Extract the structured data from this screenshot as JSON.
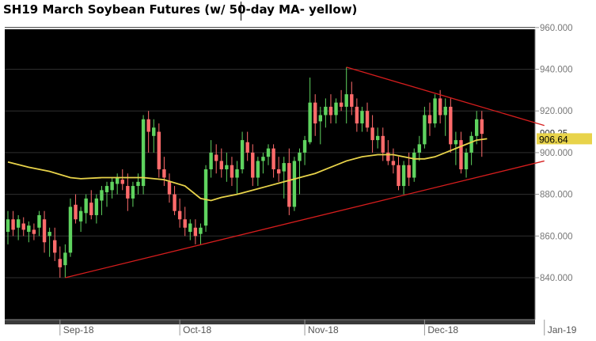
{
  "title": "SH19 March Soybean Futures (w/ 50-day MA- yellow)",
  "colors": {
    "background": "#000000",
    "up": "#5fd35f",
    "down": "#ff6b6b",
    "ma": "#e8d34a",
    "trend": "#d61d1d",
    "grid": "#2f2f2f",
    "axis": "#dddddd",
    "price_label_bg": "#e8d34a"
  },
  "chart_data": {
    "type": "candlestick",
    "ylim": [
      820,
      962
    ],
    "y_ticks": [
      "840.000",
      "860.000",
      "880.000",
      "900.000",
      "920.000",
      "940.000",
      "960.000"
    ],
    "x_labels": [
      "Sep-18",
      "Oct-18",
      "Nov-18",
      "Dec-18",
      "Jan-19"
    ],
    "x_label_days": [
      10,
      33,
      57,
      80,
      103
    ],
    "grid": "horizontal",
    "last_price": "909.25",
    "ma_value": "906.64",
    "candles": [
      {
        "o": 862,
        "h": 872,
        "l": 856,
        "c": 868
      },
      {
        "o": 868,
        "h": 872,
        "l": 860,
        "c": 863
      },
      {
        "o": 864,
        "h": 870,
        "l": 858,
        "c": 868
      },
      {
        "o": 866,
        "h": 869,
        "l": 860,
        "c": 863
      },
      {
        "o": 862,
        "h": 867,
        "l": 857,
        "c": 865
      },
      {
        "o": 863,
        "h": 866,
        "l": 858,
        "c": 861
      },
      {
        "o": 864,
        "h": 872,
        "l": 860,
        "c": 870
      },
      {
        "o": 868,
        "h": 872,
        "l": 852,
        "c": 857
      },
      {
        "o": 860,
        "h": 864,
        "l": 850,
        "c": 862
      },
      {
        "o": 858,
        "h": 864,
        "l": 848,
        "c": 852
      },
      {
        "o": 849,
        "h": 855,
        "l": 840,
        "c": 845
      },
      {
        "o": 846,
        "h": 856,
        "l": 840,
        "c": 852
      },
      {
        "o": 852,
        "h": 878,
        "l": 850,
        "c": 874
      },
      {
        "o": 875,
        "h": 880,
        "l": 866,
        "c": 868
      },
      {
        "o": 867,
        "h": 874,
        "l": 862,
        "c": 872
      },
      {
        "o": 871,
        "h": 880,
        "l": 866,
        "c": 878
      },
      {
        "o": 876,
        "h": 882,
        "l": 868,
        "c": 870
      },
      {
        "o": 870,
        "h": 880,
        "l": 866,
        "c": 878
      },
      {
        "o": 877,
        "h": 884,
        "l": 870,
        "c": 882
      },
      {
        "o": 881,
        "h": 886,
        "l": 874,
        "c": 884
      },
      {
        "o": 882,
        "h": 888,
        "l": 878,
        "c": 886
      },
      {
        "o": 885,
        "h": 890,
        "l": 880,
        "c": 888
      },
      {
        "o": 887,
        "h": 892,
        "l": 882,
        "c": 885
      },
      {
        "o": 884,
        "h": 890,
        "l": 872,
        "c": 878
      },
      {
        "o": 878,
        "h": 886,
        "l": 874,
        "c": 884
      },
      {
        "o": 884,
        "h": 890,
        "l": 880,
        "c": 886
      },
      {
        "o": 884,
        "h": 918,
        "l": 880,
        "c": 916
      },
      {
        "o": 916,
        "h": 920,
        "l": 900,
        "c": 910
      },
      {
        "o": 908,
        "h": 916,
        "l": 900,
        "c": 912
      },
      {
        "o": 910,
        "h": 914,
        "l": 888,
        "c": 892
      },
      {
        "o": 892,
        "h": 898,
        "l": 884,
        "c": 888
      },
      {
        "o": 886,
        "h": 890,
        "l": 876,
        "c": 880
      },
      {
        "o": 880,
        "h": 884,
        "l": 870,
        "c": 872
      },
      {
        "o": 872,
        "h": 878,
        "l": 864,
        "c": 868
      },
      {
        "o": 868,
        "h": 874,
        "l": 860,
        "c": 864
      },
      {
        "o": 862,
        "h": 868,
        "l": 858,
        "c": 866
      },
      {
        "o": 864,
        "h": 868,
        "l": 856,
        "c": 860
      },
      {
        "o": 861,
        "h": 866,
        "l": 856,
        "c": 864
      },
      {
        "o": 865,
        "h": 894,
        "l": 862,
        "c": 892
      },
      {
        "o": 892,
        "h": 906,
        "l": 888,
        "c": 900
      },
      {
        "o": 899,
        "h": 904,
        "l": 890,
        "c": 896
      },
      {
        "o": 896,
        "h": 902,
        "l": 888,
        "c": 892
      },
      {
        "o": 892,
        "h": 900,
        "l": 886,
        "c": 894
      },
      {
        "o": 894,
        "h": 898,
        "l": 884,
        "c": 888
      },
      {
        "o": 888,
        "h": 896,
        "l": 880,
        "c": 892
      },
      {
        "o": 892,
        "h": 910,
        "l": 890,
        "c": 906
      },
      {
        "o": 905,
        "h": 910,
        "l": 896,
        "c": 900
      },
      {
        "o": 900,
        "h": 904,
        "l": 884,
        "c": 888
      },
      {
        "o": 888,
        "h": 898,
        "l": 884,
        "c": 896
      },
      {
        "o": 896,
        "h": 900,
        "l": 890,
        "c": 898
      },
      {
        "o": 898,
        "h": 904,
        "l": 894,
        "c": 902
      },
      {
        "o": 902,
        "h": 904,
        "l": 888,
        "c": 892
      },
      {
        "o": 892,
        "h": 898,
        "l": 886,
        "c": 890
      },
      {
        "o": 891,
        "h": 898,
        "l": 878,
        "c": 895
      },
      {
        "o": 895,
        "h": 902,
        "l": 870,
        "c": 874
      },
      {
        "o": 874,
        "h": 898,
        "l": 872,
        "c": 896
      },
      {
        "o": 896,
        "h": 902,
        "l": 880,
        "c": 900
      },
      {
        "o": 900,
        "h": 908,
        "l": 894,
        "c": 906
      },
      {
        "o": 905,
        "h": 936,
        "l": 904,
        "c": 924
      },
      {
        "o": 924,
        "h": 928,
        "l": 908,
        "c": 914
      },
      {
        "o": 915,
        "h": 922,
        "l": 904,
        "c": 918
      },
      {
        "o": 918,
        "h": 926,
        "l": 912,
        "c": 922
      },
      {
        "o": 922,
        "h": 928,
        "l": 914,
        "c": 918
      },
      {
        "o": 918,
        "h": 926,
        "l": 914,
        "c": 924
      },
      {
        "o": 924,
        "h": 930,
        "l": 920,
        "c": 922
      },
      {
        "o": 922,
        "h": 941,
        "l": 914,
        "c": 928
      },
      {
        "o": 928,
        "h": 934,
        "l": 918,
        "c": 922
      },
      {
        "o": 922,
        "h": 926,
        "l": 910,
        "c": 914
      },
      {
        "o": 914,
        "h": 922,
        "l": 910,
        "c": 920
      },
      {
        "o": 920,
        "h": 924,
        "l": 910,
        "c": 912
      },
      {
        "o": 912,
        "h": 918,
        "l": 900,
        "c": 906
      },
      {
        "o": 906,
        "h": 912,
        "l": 902,
        "c": 908
      },
      {
        "o": 908,
        "h": 912,
        "l": 896,
        "c": 900
      },
      {
        "o": 900,
        "h": 906,
        "l": 894,
        "c": 896
      },
      {
        "o": 896,
        "h": 902,
        "l": 890,
        "c": 894
      },
      {
        "o": 894,
        "h": 898,
        "l": 882,
        "c": 884
      },
      {
        "o": 884,
        "h": 896,
        "l": 880,
        "c": 894
      },
      {
        "o": 894,
        "h": 900,
        "l": 884,
        "c": 888
      },
      {
        "o": 888,
        "h": 902,
        "l": 886,
        "c": 900
      },
      {
        "o": 900,
        "h": 908,
        "l": 896,
        "c": 904
      },
      {
        "o": 904,
        "h": 922,
        "l": 902,
        "c": 918
      },
      {
        "o": 918,
        "h": 924,
        "l": 908,
        "c": 914
      },
      {
        "o": 914,
        "h": 928,
        "l": 912,
        "c": 926
      },
      {
        "o": 926,
        "h": 930,
        "l": 914,
        "c": 918
      },
      {
        "o": 918,
        "h": 926,
        "l": 908,
        "c": 922
      },
      {
        "o": 922,
        "h": 926,
        "l": 900,
        "c": 904
      },
      {
        "o": 904,
        "h": 910,
        "l": 894,
        "c": 906
      },
      {
        "o": 906,
        "h": 910,
        "l": 890,
        "c": 892
      },
      {
        "o": 892,
        "h": 902,
        "l": 888,
        "c": 900
      },
      {
        "o": 900,
        "h": 910,
        "l": 894,
        "c": 908
      },
      {
        "o": 908,
        "h": 920,
        "l": 904,
        "c": 916
      },
      {
        "o": 916,
        "h": 920,
        "l": 898,
        "c": 909
      }
    ],
    "ma": [
      [
        0,
        895.5
      ],
      [
        4,
        893
      ],
      [
        8,
        891
      ],
      [
        12,
        888
      ],
      [
        14,
        887.5
      ],
      [
        18,
        888
      ],
      [
        22,
        888
      ],
      [
        26,
        888
      ],
      [
        30,
        887
      ],
      [
        34,
        884
      ],
      [
        37,
        878
      ],
      [
        39,
        877
      ],
      [
        41,
        878.5
      ],
      [
        44,
        880
      ],
      [
        47,
        882
      ],
      [
        50,
        884
      ],
      [
        53,
        886
      ],
      [
        56,
        888
      ],
      [
        59,
        890
      ],
      [
        62,
        893
      ],
      [
        65,
        896
      ],
      [
        68,
        898
      ],
      [
        71,
        899
      ],
      [
        74,
        899
      ],
      [
        76,
        898
      ],
      [
        78,
        897
      ],
      [
        80,
        897
      ],
      [
        82,
        898
      ],
      [
        84,
        900
      ],
      [
        86,
        902
      ],
      [
        88,
        904
      ],
      [
        90,
        906
      ],
      [
        92,
        906.64
      ]
    ],
    "trendlines": [
      {
        "x1": 11,
        "y1": 840,
        "x2": 103,
        "y2": 896
      },
      {
        "x1": 65,
        "y1": 941,
        "x2": 103,
        "y2": 913
      }
    ]
  }
}
